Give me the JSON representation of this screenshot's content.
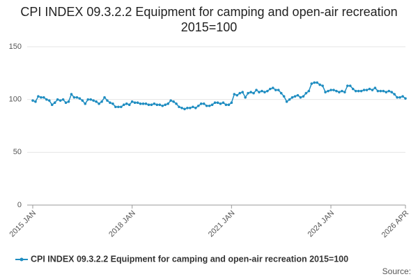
{
  "chart_data": {
    "type": "line",
    "title": "CPI INDEX 09.3.2.2 Equipment for camping and open-air recreation 2015=100",
    "categories": [
      "2015 JAN",
      null,
      null,
      null,
      null,
      null,
      null,
      null,
      null,
      null,
      null,
      null,
      null,
      null,
      null,
      null,
      null,
      null,
      null,
      null,
      null,
      null,
      null,
      null,
      null,
      null,
      null,
      null,
      null,
      null,
      null,
      null,
      null,
      null,
      null,
      null,
      "2018 JAN",
      null,
      null,
      null,
      null,
      null,
      null,
      null,
      null,
      null,
      null,
      null,
      null,
      null,
      null,
      null,
      null,
      null,
      null,
      null,
      null,
      null,
      null,
      null,
      null,
      null,
      null,
      null,
      null,
      null,
      null,
      null,
      null,
      null,
      null,
      null,
      "2021 JAN",
      null,
      null,
      null,
      null,
      null,
      null,
      null,
      null,
      null,
      null,
      null,
      null,
      null,
      null,
      null,
      null,
      null,
      null,
      null,
      null,
      null,
      null,
      null,
      null,
      null,
      null,
      null,
      null,
      null,
      null,
      null,
      null,
      null,
      null,
      null,
      "2024 JAN",
      null,
      null,
      null,
      null,
      null,
      null,
      null,
      null,
      null,
      null,
      null,
      null,
      null,
      null,
      null,
      null,
      null,
      null,
      null,
      null,
      null,
      null,
      null,
      null,
      null,
      null,
      "2026 APR"
    ],
    "series": [
      {
        "name": "CPI INDEX 09.3.2.2 Equipment for camping and open-air recreation 2015=100",
        "color": "#1f8dc1",
        "values": [
          99,
          98,
          103,
          102,
          102,
          100,
          99,
          95,
          97,
          100,
          99,
          100,
          97,
          98,
          105,
          102,
          102,
          101,
          99,
          96,
          100,
          100,
          99,
          98,
          96,
          98,
          102,
          99,
          97,
          96,
          93,
          93,
          93,
          95,
          96,
          95,
          98,
          97,
          97,
          96,
          96,
          96,
          95,
          95,
          96,
          95,
          95,
          94,
          95,
          96,
          99,
          98,
          96,
          93,
          92,
          91,
          92,
          92,
          93,
          92,
          94,
          96,
          96,
          94,
          94,
          95,
          97,
          97,
          96,
          97,
          95,
          95,
          97,
          105,
          104,
          106,
          107,
          102,
          106,
          107,
          106,
          109,
          107,
          108,
          107,
          108,
          110,
          111,
          109,
          109,
          106,
          103,
          98,
          100,
          102,
          103,
          104,
          102,
          103,
          106,
          108,
          115,
          116,
          116,
          114,
          113,
          107,
          108,
          109,
          109,
          108,
          107,
          108,
          107,
          113,
          113,
          110,
          108,
          108,
          108,
          109,
          109,
          110,
          109,
          111,
          108,
          108,
          108,
          107,
          108,
          107,
          105,
          102,
          102,
          103,
          101
        ]
      }
    ],
    "ylim": [
      0,
      150
    ],
    "yticks": [
      0,
      50,
      100,
      150
    ],
    "grid": true,
    "source": "Source:"
  }
}
